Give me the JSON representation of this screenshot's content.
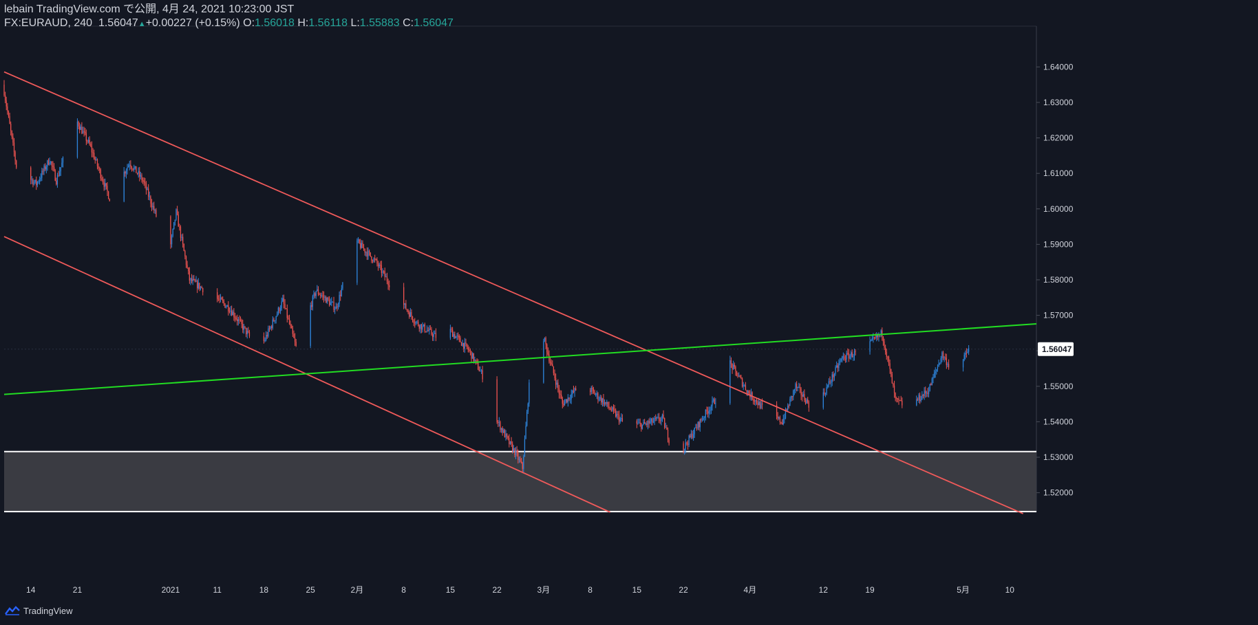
{
  "header": {
    "publish_line": "lebain TradingView.com で公開, 4月 24, 2021 10:23:00 JST",
    "symbol": "FX:EURAUD, 240",
    "last": "1.56047",
    "change_arrow": "▲",
    "change": "+0.00227 (+0.15%)",
    "o_label": "O:",
    "o_value": "1.56018",
    "h_label": "H:",
    "h_value": "1.56118",
    "l_label": "L:",
    "l_value": "1.55883",
    "c_label": "C:",
    "c_value": "1.56047"
  },
  "footer": {
    "brand": "TradingView"
  },
  "colors": {
    "background": "#131722",
    "candle_up": "#2e86de",
    "candle_down": "#ef5350",
    "channel": "#f05a5a",
    "support_line": "#22dd22",
    "zone_fill": "#3a3b42",
    "zone_border": "#ffffff",
    "price_badge_bg": "#ffffff",
    "price_badge_text": "#131722",
    "axis_text": "#d1d4dc"
  },
  "chart_data": {
    "type": "candlestick",
    "symbol": "FX:EURAUD",
    "interval": "240",
    "y_range": [
      1.5145,
      1.6515
    ],
    "y_ticks": [
      "1.52000",
      "1.53000",
      "1.54000",
      "1.55000",
      "1.56000",
      "1.57000",
      "1.58000",
      "1.59000",
      "1.60000",
      "1.61000",
      "1.62000",
      "1.63000",
      "1.64000"
    ],
    "last_price_label": "1.56047",
    "last_price": 1.56047,
    "x_labels": [
      "14",
      "21",
      "2021",
      "11",
      "18",
      "25",
      "2月",
      "8",
      "15",
      "22",
      "3月",
      "8",
      "15",
      "22",
      "4月",
      "12",
      "19",
      "5月",
      "10"
    ],
    "x_label_dates": [
      "2020-12-14",
      "2020-12-21",
      "2021-01-04",
      "2021-01-11",
      "2021-01-18",
      "2021-01-25",
      "2021-02-01",
      "2021-02-08",
      "2021-02-15",
      "2021-02-22",
      "2021-03-01",
      "2021-03-08",
      "2021-03-15",
      "2021-03-22",
      "2021-04-01",
      "2021-04-12",
      "2021-04-19",
      "2021-05-03",
      "2021-05-10"
    ],
    "price_path": [
      {
        "date": "2020-12-10",
        "price": 1.635
      },
      {
        "date": "2020-12-12",
        "price": 1.612
      },
      {
        "date": "2020-12-15",
        "price": 1.607
      },
      {
        "date": "2020-12-17",
        "price": 1.614
      },
      {
        "date": "2020-12-18",
        "price": 1.608
      },
      {
        "date": "2020-12-21",
        "price": 1.625
      },
      {
        "date": "2020-12-23",
        "price": 1.618
      },
      {
        "date": "2020-12-26",
        "price": 1.603
      },
      {
        "date": "2020-12-29",
        "price": 1.613
      },
      {
        "date": "2020-12-31",
        "price": 1.608
      },
      {
        "date": "2021-01-04",
        "price": 1.588
      },
      {
        "date": "2021-01-05",
        "price": 1.599
      },
      {
        "date": "2021-01-07",
        "price": 1.58
      },
      {
        "date": "2021-01-11",
        "price": 1.575
      },
      {
        "date": "2021-01-13",
        "price": 1.572
      },
      {
        "date": "2021-01-16",
        "price": 1.564
      },
      {
        "date": "2021-01-18",
        "price": 1.562
      },
      {
        "date": "2021-01-21",
        "price": 1.574
      },
      {
        "date": "2021-01-23",
        "price": 1.561
      },
      {
        "date": "2021-01-26",
        "price": 1.577
      },
      {
        "date": "2021-01-29",
        "price": 1.572
      },
      {
        "date": "2021-02-01",
        "price": 1.591
      },
      {
        "date": "2021-02-04",
        "price": 1.585
      },
      {
        "date": "2021-02-07",
        "price": 1.576
      },
      {
        "date": "2021-02-10",
        "price": 1.568
      },
      {
        "date": "2021-02-13",
        "price": 1.564
      },
      {
        "date": "2021-02-15",
        "price": 1.566
      },
      {
        "date": "2021-02-18",
        "price": 1.56
      },
      {
        "date": "2021-02-20",
        "price": 1.553
      },
      {
        "date": "2021-02-22",
        "price": 1.541
      },
      {
        "date": "2021-02-24",
        "price": 1.534
      },
      {
        "date": "2021-02-25",
        "price": 1.531
      },
      {
        "date": "2021-02-26",
        "price": 1.527
      },
      {
        "date": "2021-02-27",
        "price": 1.55
      },
      {
        "date": "2021-03-01",
        "price": 1.565
      },
      {
        "date": "2021-03-02",
        "price": 1.558
      },
      {
        "date": "2021-03-04",
        "price": 1.545
      },
      {
        "date": "2021-03-07",
        "price": 1.551
      },
      {
        "date": "2021-03-10",
        "price": 1.546
      },
      {
        "date": "2021-03-13",
        "price": 1.54
      },
      {
        "date": "2021-03-16",
        "price": 1.539
      },
      {
        "date": "2021-03-19",
        "price": 1.541
      },
      {
        "date": "2021-03-21",
        "price": 1.529
      },
      {
        "date": "2021-03-23",
        "price": 1.535
      },
      {
        "date": "2021-03-25",
        "price": 1.541
      },
      {
        "date": "2021-03-28",
        "price": 1.549
      },
      {
        "date": "2021-03-29",
        "price": 1.557
      },
      {
        "date": "2021-04-01",
        "price": 1.548
      },
      {
        "date": "2021-04-04",
        "price": 1.542
      },
      {
        "date": "2021-04-06",
        "price": 1.54
      },
      {
        "date": "2021-04-08",
        "price": 1.55
      },
      {
        "date": "2021-04-10",
        "price": 1.545
      },
      {
        "date": "2021-04-12",
        "price": 1.547
      },
      {
        "date": "2021-04-15",
        "price": 1.558
      },
      {
        "date": "2021-04-18",
        "price": 1.56
      },
      {
        "date": "2021-04-21",
        "price": 1.565
      },
      {
        "date": "2021-04-22",
        "price": 1.556
      },
      {
        "date": "2021-04-23",
        "price": 1.546
      },
      {
        "date": "2021-04-25",
        "price": 1.544
      },
      {
        "date": "2021-04-28",
        "price": 1.549
      },
      {
        "date": "2021-04-30",
        "price": 1.559
      },
      {
        "date": "2021-05-02",
        "price": 1.553
      },
      {
        "date": "2021-05-04",
        "price": 1.5605
      }
    ],
    "trendlines": [
      {
        "kind": "channel-upper",
        "color": "#f05a5a",
        "from": {
          "date": "2020-12-10",
          "price": 1.6386
        },
        "to": {
          "date": "2021-05-12",
          "price": 1.5141
        }
      },
      {
        "kind": "channel-lower",
        "color": "#f05a5a",
        "from": {
          "date": "2020-12-10",
          "price": 1.5922
        },
        "to": {
          "date": "2021-03-11",
          "price": 1.5145
        }
      },
      {
        "kind": "support",
        "color": "#22dd22",
        "from": {
          "date": "2020-12-10",
          "price": 1.5477
        },
        "to": {
          "date": "2021-05-14",
          "price": 1.5676
        }
      }
    ],
    "zone": {
      "top": 1.5316,
      "bottom": 1.5145
    }
  }
}
